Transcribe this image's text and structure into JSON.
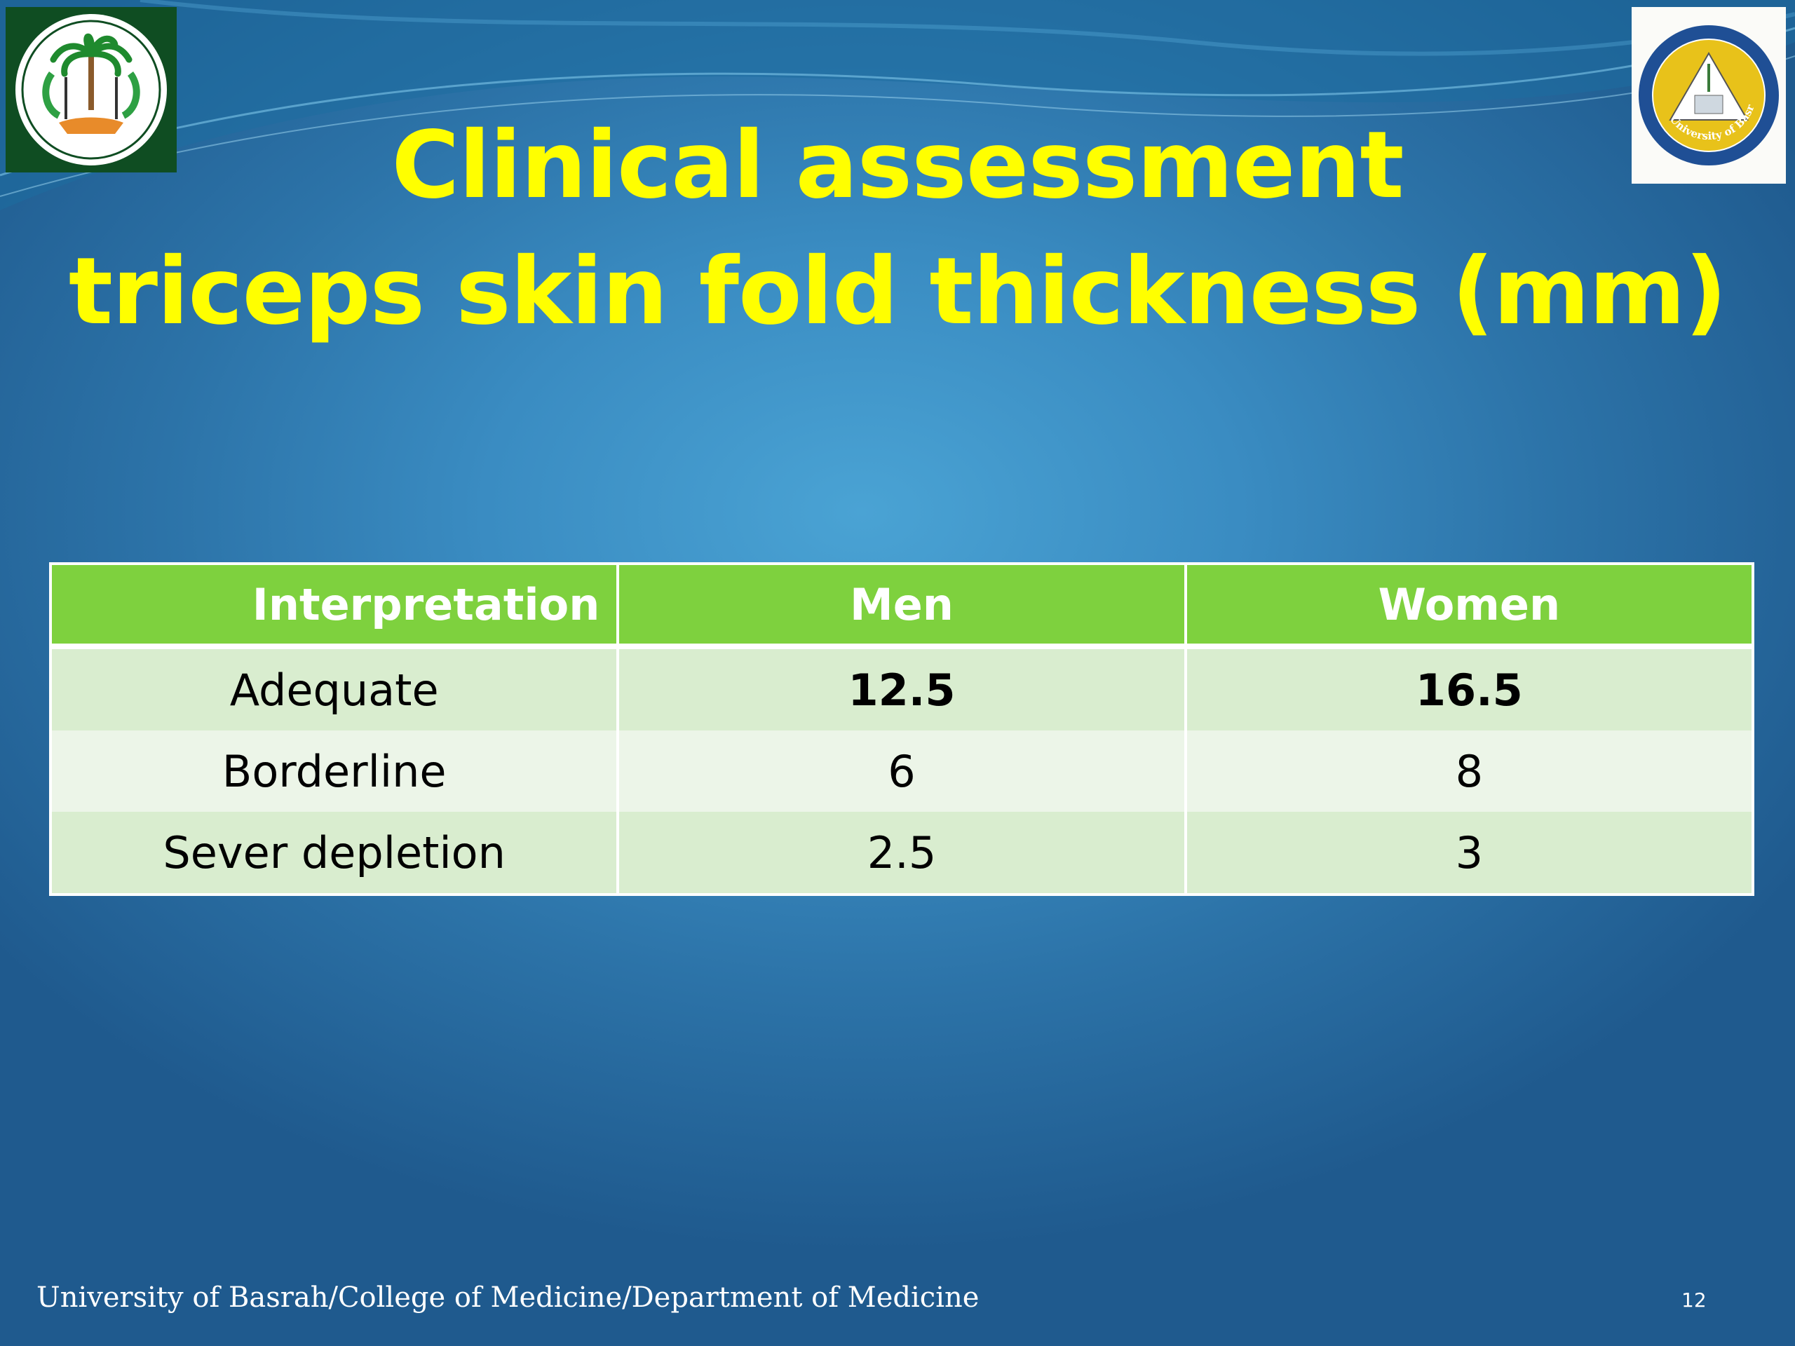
{
  "slide": {
    "title_line1": "Clinical assessment",
    "title_line2": "triceps skin fold thickness (mm)",
    "footer": "University of Basrah/College of Medicine/Department of Medicine",
    "page_number": "12"
  },
  "logos": {
    "left": {
      "icon": "iraqi-ministry-emblem-icon"
    },
    "right": {
      "icon": "university-of-basrah-seal-icon",
      "seal_text": "University of Basrah"
    }
  },
  "table": {
    "headers": [
      "Interpretation",
      "Men",
      "Women"
    ],
    "rows": [
      {
        "interpretation": "Adequate",
        "men": "12.5",
        "women": "16.5"
      },
      {
        "interpretation": "Borderline",
        "men": "6",
        "women": "8"
      },
      {
        "interpretation": "Sever depletion",
        "men": "2.5",
        "women": "3"
      }
    ]
  },
  "colors": {
    "title": "#ffff00",
    "header_bg": "#7ed13e",
    "row_odd": "#d9edcf",
    "row_even": "#ecf5e8",
    "background": "#3a8cc2"
  }
}
